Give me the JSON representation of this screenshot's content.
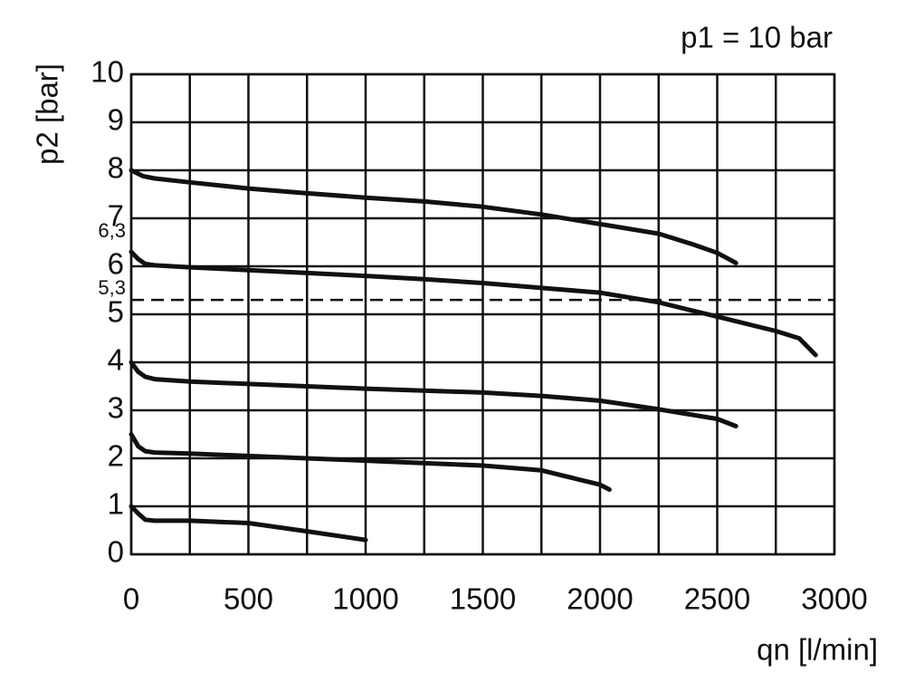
{
  "chart_data": {
    "type": "line",
    "title": "p1 = 10 bar",
    "x_label": "qn [l/min]",
    "y_label": "p2 [bar]",
    "xlim": [
      0,
      3000
    ],
    "ylim": [
      0,
      10
    ],
    "xticks": [
      0,
      500,
      1000,
      1500,
      2000,
      2500,
      3000
    ],
    "x_minor_grid": [
      250,
      750,
      1250,
      1750,
      2250,
      2750
    ],
    "yticks": [
      0,
      1,
      2,
      3,
      4,
      5,
      6,
      7,
      8,
      9,
      10
    ],
    "grid": true,
    "annotations": [
      {
        "value": 6.3,
        "label": "6,3"
      }
    ],
    "reference_lines": [
      {
        "value": 5.3,
        "label": "5,3",
        "style": "dashed"
      }
    ],
    "series": [
      {
        "color": "#111111",
        "x": [
          0,
          50,
          100,
          250,
          500,
          750,
          1000,
          1250,
          1500,
          1750,
          2000,
          2250,
          2400,
          2500,
          2580
        ],
        "values": [
          8.0,
          7.88,
          7.83,
          7.75,
          7.62,
          7.52,
          7.43,
          7.35,
          7.24,
          7.08,
          6.88,
          6.68,
          6.45,
          6.28,
          6.07
        ]
      },
      {
        "color": "#111111",
        "x": [
          0,
          30,
          60,
          100,
          250,
          500,
          750,
          1000,
          1250,
          1500,
          1750,
          2000,
          2250,
          2500,
          2750,
          2850,
          2920
        ],
        "values": [
          6.3,
          6.15,
          6.05,
          6.02,
          5.98,
          5.92,
          5.86,
          5.8,
          5.73,
          5.65,
          5.55,
          5.45,
          5.25,
          4.95,
          4.65,
          4.5,
          4.15
        ]
      },
      {
        "color": "#111111",
        "x": [
          0,
          30,
          60,
          100,
          250,
          500,
          1000,
          1500,
          1750,
          2000,
          2250,
          2500,
          2580
        ],
        "values": [
          4.0,
          3.8,
          3.7,
          3.65,
          3.6,
          3.55,
          3.45,
          3.37,
          3.3,
          3.2,
          3.02,
          2.82,
          2.67
        ]
      },
      {
        "color": "#111111",
        "x": [
          0,
          30,
          60,
          100,
          250,
          500,
          1000,
          1500,
          1750,
          2000,
          2040
        ],
        "values": [
          2.5,
          2.25,
          2.15,
          2.12,
          2.1,
          2.05,
          1.95,
          1.85,
          1.75,
          1.45,
          1.35
        ]
      },
      {
        "color": "#111111",
        "x": [
          0,
          30,
          60,
          100,
          250,
          500,
          750,
          1000
        ],
        "values": [
          1.0,
          0.85,
          0.72,
          0.7,
          0.7,
          0.65,
          0.48,
          0.3
        ]
      }
    ]
  }
}
